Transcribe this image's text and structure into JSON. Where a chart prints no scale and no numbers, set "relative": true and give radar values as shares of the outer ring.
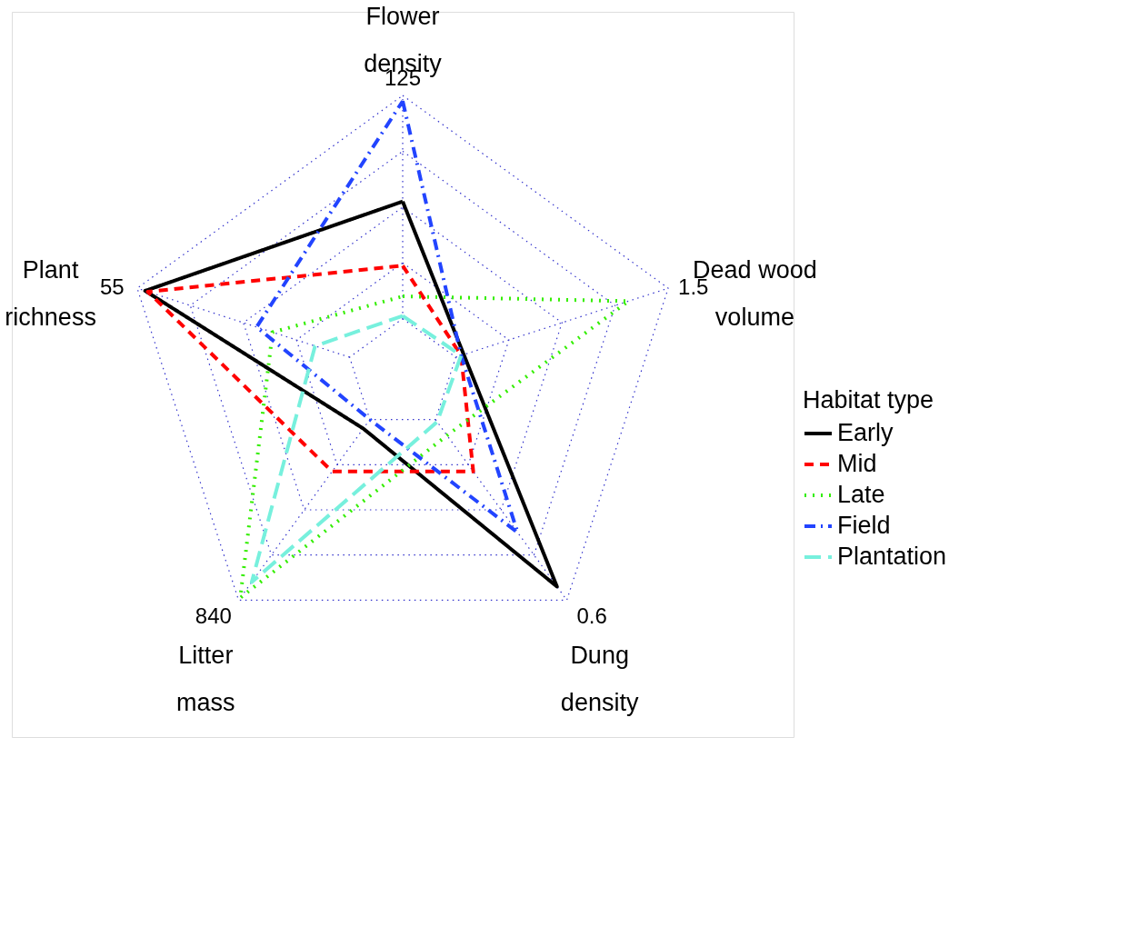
{
  "chart_data": {
    "type": "radar",
    "relative": true,
    "categories": [
      "Flower\ndensity",
      "Dead wood\nvolume",
      "Dung\ndensity",
      "Litter\nmass",
      "Plant\nrichness"
    ],
    "series": [
      {
        "name": "Early",
        "color": "#000000",
        "line_style": "solid",
        "values": [
          0.62,
          0.23,
          0.94,
          0.24,
          0.97
        ]
      },
      {
        "name": "Mid",
        "color": "#ff0000",
        "line_style": "dashed",
        "values": [
          0.39,
          0.22,
          0.43,
          0.43,
          0.96
        ]
      },
      {
        "name": "Late",
        "color": "#33ee00",
        "line_style": "dotted",
        "values": [
          0.28,
          0.85,
          0.27,
          0.99,
          0.49
        ]
      },
      {
        "name": "Field",
        "color": "#2244ff",
        "line_style": "dashdot",
        "values": [
          0.98,
          0.22,
          0.7,
          0.2,
          0.55
        ]
      },
      {
        "name": "Plantation",
        "color": "#77f0dd",
        "line_style": "longdash",
        "values": [
          0.21,
          0.22,
          0.21,
          0.92,
          0.33
        ]
      }
    ],
    "annotations": [
      "125",
      "1.5",
      "0.6",
      "840",
      "55"
    ],
    "legend_title": "Habitat type",
    "legend": "right",
    "grid": true
  }
}
